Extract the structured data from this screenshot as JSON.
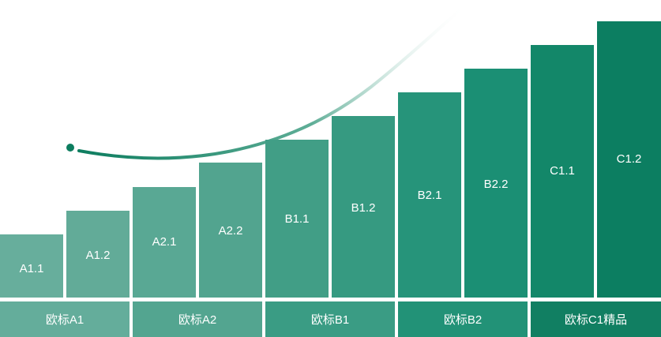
{
  "steps": [
    {
      "label": "A1.1",
      "color": "#67ae9c"
    },
    {
      "label": "A1.2",
      "color": "#62ab98"
    },
    {
      "label": "A2.1",
      "color": "#59a894"
    },
    {
      "label": "A2.2",
      "color": "#52a48f"
    },
    {
      "label": "B1.1",
      "color": "#419e86"
    },
    {
      "label": "B1.2",
      "color": "#369a81"
    },
    {
      "label": "B2.1",
      "color": "#26947a"
    },
    {
      "label": "B2.2",
      "color": "#1b8f74"
    },
    {
      "label": "C1.1",
      "color": "#138769"
    },
    {
      "label": "C1.2",
      "color": "#0c7e61"
    }
  ],
  "groups": [
    {
      "label": "欧标A1",
      "color": "#64ad9b"
    },
    {
      "label": "欧标A2",
      "color": "#53a590"
    },
    {
      "label": "欧标B1",
      "color": "#3a9c84"
    },
    {
      "label": "欧标B2",
      "color": "#229277"
    },
    {
      "label": "欧标C1精品",
      "color": "#117f62"
    }
  ],
  "colors": {
    "curve_start": "#0d7d5f",
    "curve_end": "#ffffff"
  }
}
